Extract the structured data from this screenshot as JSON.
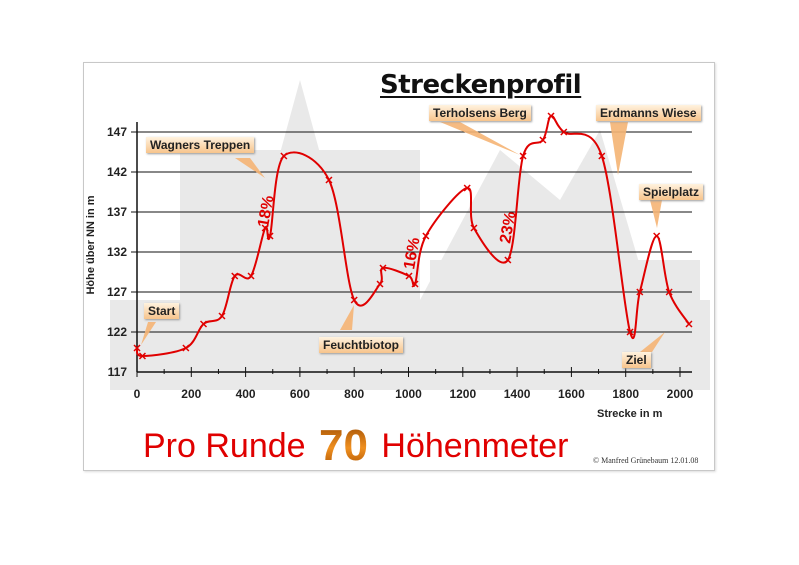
{
  "title": "Streckenprofil",
  "footer": {
    "prefix": "Pro Runde",
    "number": "70",
    "suffix": "Höhenmeter"
  },
  "copyright": "© Manfred Grünebaum 12.01.08",
  "colors": {
    "line": "#e00000",
    "grid": "#111111",
    "callout_top": "#fff2df",
    "callout_bottom": "#f7c48c",
    "footer_text": "#e00000"
  },
  "callouts": [
    {
      "label": "Start"
    },
    {
      "label": "Wagners Treppen"
    },
    {
      "label": "Feuchtbiotop"
    },
    {
      "label": "Terholsens Berg"
    },
    {
      "label": "Erdmanns Wiese"
    },
    {
      "label": "Spielplatz"
    },
    {
      "label": "Ziel"
    }
  ],
  "grades": [
    "18%",
    "16%",
    "23%"
  ],
  "chart_data": {
    "type": "line",
    "title": "Streckenprofil",
    "xlabel": "Strecke in m",
    "ylabel": "Höhe über NN in m",
    "xlim": [
      0,
      2000
    ],
    "ylim": [
      117,
      147
    ],
    "x_ticks": [
      0,
      200,
      400,
      600,
      800,
      1000,
      1200,
      1400,
      1600,
      1800,
      2000
    ],
    "y_ticks": [
      117,
      122,
      127,
      132,
      137,
      142,
      147
    ],
    "grid": "horizontal",
    "series": [
      {
        "name": "Höhe",
        "x": [
          0,
          20,
          180,
          245,
          313,
          360,
          420,
          472,
          490,
          541,
          707,
          800,
          895,
          906,
          1002,
          1024,
          1064,
          1216,
          1241,
          1366,
          1422,
          1495,
          1525,
          1572,
          1712,
          1816,
          1852,
          1914,
          1960,
          2033
        ],
        "y": [
          120,
          119,
          120,
          123,
          124,
          129,
          129,
          135,
          134,
          144,
          141,
          126,
          128,
          130,
          129,
          128,
          134,
          140,
          135,
          131,
          144,
          146,
          149,
          147,
          144,
          122,
          127,
          134,
          127,
          123
        ]
      }
    ],
    "annotations": [
      {
        "text": "Start",
        "x": 0
      },
      {
        "text": "Wagners Treppen",
        "x": 480
      },
      {
        "text": "18%",
        "x": 480
      },
      {
        "text": "Feuchtbiotop",
        "x": 800
      },
      {
        "text": "16%",
        "x": 1020
      },
      {
        "text": "Terholsens Berg",
        "x": 1400
      },
      {
        "text": "23%",
        "x": 1380
      },
      {
        "text": "Erdmanns Wiese",
        "x": 1760
      },
      {
        "text": "Spielplatz",
        "x": 1914
      },
      {
        "text": "Ziel",
        "x": 2033
      }
    ],
    "subtitle": "Pro Runde 70 Höhenmeter"
  }
}
